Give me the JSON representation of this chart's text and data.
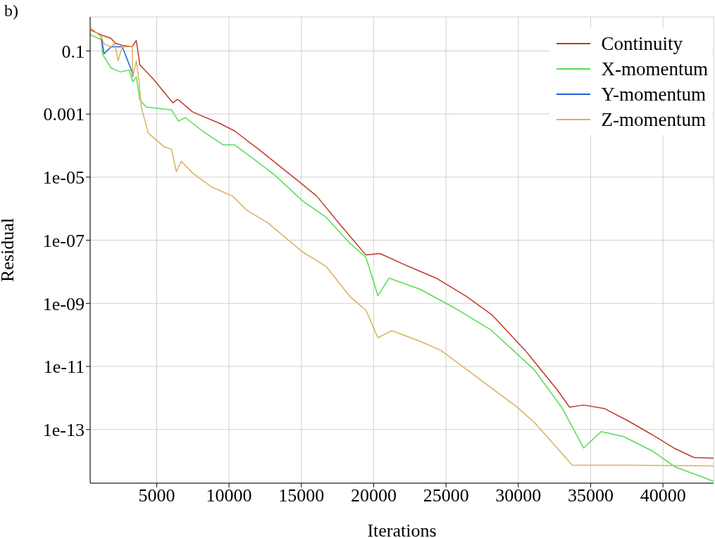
{
  "chart_data": {
    "type": "line",
    "xlabel": "Iterations",
    "ylabel": "Residual",
    "annotations": [
      "b)"
    ],
    "log": "y",
    "grid": true,
    "legend": "top right",
    "marker": "none",
    "line_style": "solid",
    "xlim": [
      400,
      43500
    ],
    "xticks": [
      5000,
      10000,
      15000,
      20000,
      25000,
      30000,
      35000,
      40000
    ],
    "ylim": [
      2e-15,
      1.2
    ],
    "yticks": [
      0.1,
      0.001,
      {
        "value": 1e-05,
        "label": "1e-05"
      },
      {
        "value": 1e-07,
        "label": "1e-07"
      },
      {
        "value": 1e-09,
        "label": "1e-09"
      },
      {
        "value": 1e-11,
        "label": "1e-11"
      },
      {
        "value": 1e-13,
        "label": "1e-13"
      }
    ],
    "series": [
      {
        "name": "Continuity",
        "color": "#c0392b",
        "x": [
          437,
          1165,
          1845,
          2136,
          2621,
          3301,
          3592,
          3835,
          4757,
          6116,
          6456,
          7475,
          9417,
          10388,
          12038,
          14271,
          16067,
          17523,
          19465,
          20435,
          22377,
          24319,
          26406,
          28202,
          30483,
          32716,
          33541,
          34512,
          35968,
          37570,
          39220,
          40822,
          42133,
          43492
        ],
        "values": [
          0.46,
          0.32,
          0.25,
          0.175,
          0.15,
          0.136,
          0.215,
          0.036,
          0.0129,
          0.00227,
          0.00293,
          0.00117,
          0.00049,
          0.00029,
          7.7e-05,
          1.17e-05,
          2.5e-06,
          3.8e-07,
          3.4e-08,
          3.8e-08,
          1.5e-08,
          6.3e-09,
          1.67e-09,
          4.2e-10,
          3.2e-11,
          1.75e-12,
          5.1e-13,
          6e-13,
          4.6e-13,
          1.9e-13,
          7e-14,
          2.5e-14,
          1.3e-14,
          1.23e-14
        ]
      },
      {
        "name": "X-momentum",
        "color": "#55dd55",
        "x": [
          437,
          1165,
          1262,
          1845,
          2136,
          2476,
          3107,
          3349,
          3592,
          3835,
          4272,
          6019,
          6504,
          6990,
          8155,
          9611,
          10388,
          11698,
          13154,
          15096,
          16698,
          18348,
          19465,
          20290,
          21067,
          23202,
          25629,
          28056,
          29658,
          31114,
          33056,
          34512,
          35726,
          37279,
          39220,
          40822,
          43492
        ],
        "values": [
          0.32,
          0.23,
          0.077,
          0.029,
          0.025,
          0.0215,
          0.025,
          0.0105,
          0.015,
          0.0028,
          0.00167,
          0.00136,
          0.0006,
          0.00077,
          0.00029,
          0.000105,
          0.000105,
          3.8e-05,
          1.17e-05,
          1.75e-06,
          5.4e-07,
          8.1e-08,
          2.9e-08,
          1.75e-09,
          6.3e-09,
          2.8e-09,
          7e-10,
          1.5e-10,
          3.2e-11,
          7.7e-12,
          4.6e-13,
          2.6e-14,
          8.6e-14,
          6e-14,
          2.15e-14,
          6.6e-15,
          2.3e-15
        ]
      },
      {
        "name": "Y-momentum",
        "color": "#1f5fd6",
        "x": [
          1165,
          1359,
          1845,
          2621,
          3301,
          3349
        ],
        "values": [
          0.28,
          0.081,
          0.136,
          0.136,
          0.0215,
          0.015
        ]
      },
      {
        "name": "Z-momentum",
        "color": "#d9b060",
        "x": [
          437,
          1165,
          1359,
          1845,
          2087,
          2330,
          2621,
          3301,
          3349,
          3592,
          3786,
          3932,
          4417,
          5534,
          6019,
          6359,
          6699,
          7475,
          8786,
          10242,
          11213,
          12669,
          15096,
          16698,
          18348,
          19465,
          20290,
          21261,
          23202,
          24658,
          29852,
          31114,
          32716,
          33735,
          37910,
          43492
        ],
        "values": [
          0.54,
          0.28,
          0.167,
          0.136,
          0.175,
          0.049,
          0.136,
          0.136,
          0.015,
          0.049,
          0.0105,
          0.00167,
          0.00025,
          9e-05,
          7.7e-05,
          1.5e-05,
          3.2e-05,
          1.36e-05,
          4.9e-06,
          2.5e-06,
          9e-07,
          3.6e-07,
          4.2e-08,
          1.5e-08,
          1.67e-09,
          6e-10,
          8.1e-11,
          1.36e-10,
          6.3e-11,
          3.2e-11,
          5.4e-13,
          1.67e-13,
          2.5e-14,
          7.4e-15,
          7.4e-15,
          7e-15
        ]
      }
    ]
  }
}
